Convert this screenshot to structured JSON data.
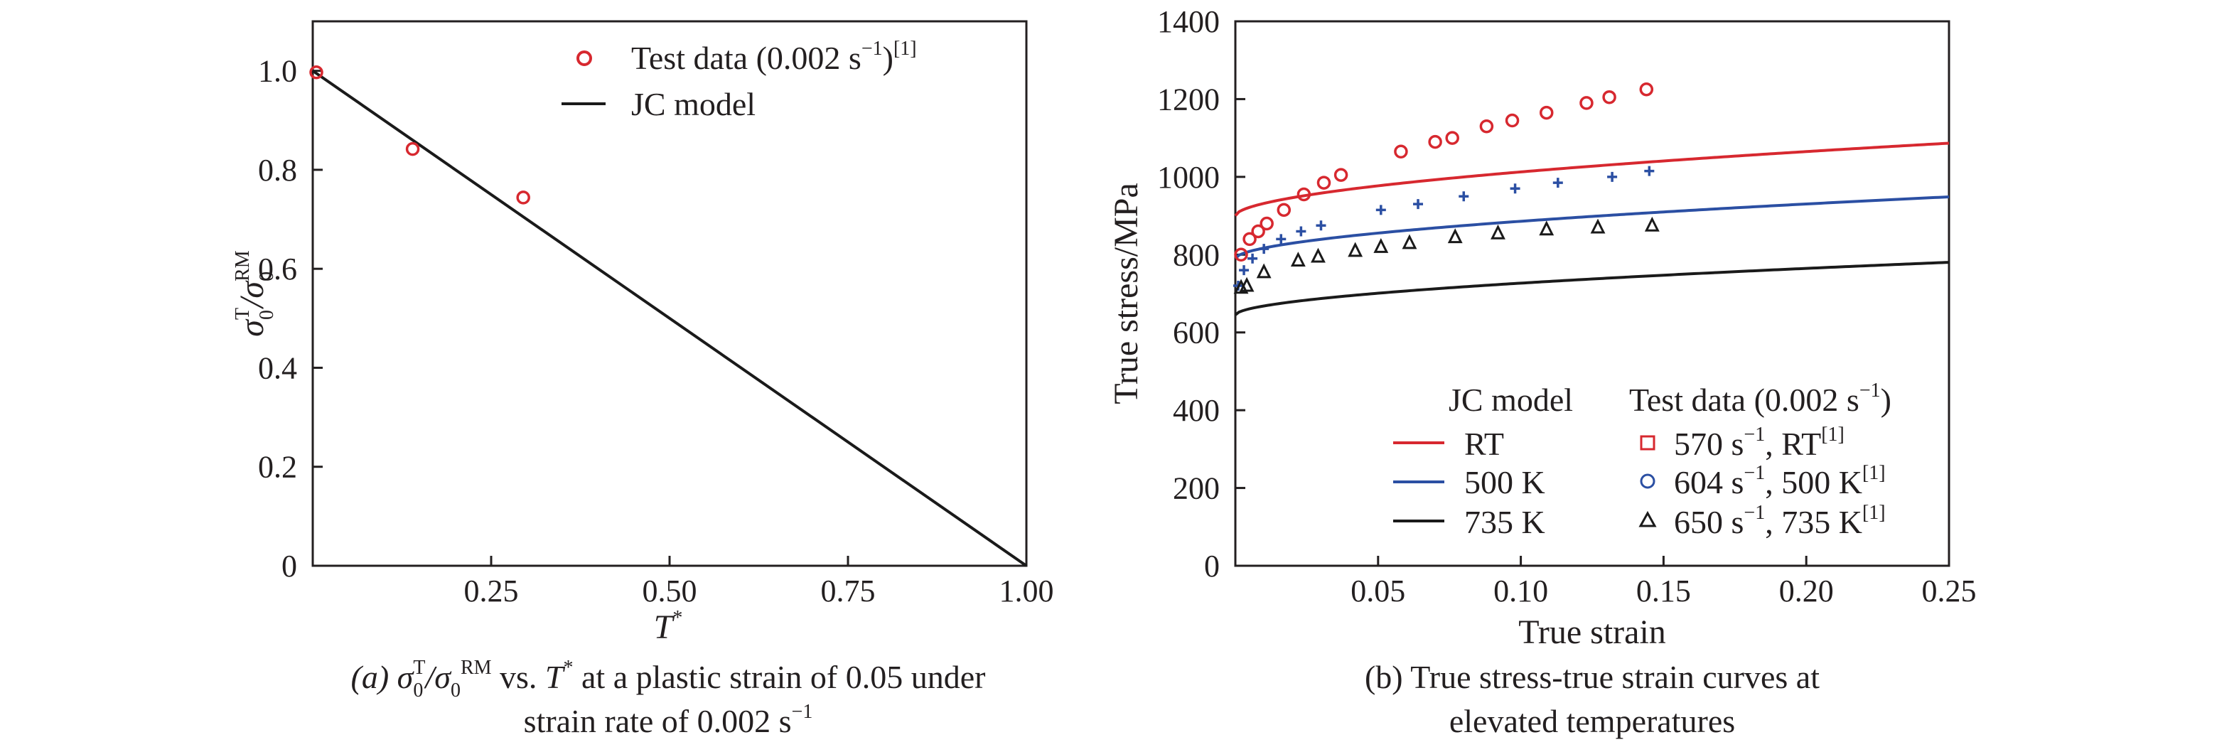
{
  "chart_data": [
    {
      "type": "line+scatter",
      "panel": "a",
      "ylabel": {
        "main": "σ",
        "sub": "0",
        "sup": "T",
        "slash": "/σ",
        "sub2": "0",
        "sup2": "RM"
      },
      "xlabel": {
        "main": "T",
        "sup": "*"
      },
      "xlim": [
        0,
        1.0
      ],
      "ylim": [
        0,
        1.1
      ],
      "xticks": [
        {
          "v": 0.25,
          "label": "0.25"
        },
        {
          "v": 0.5,
          "label": "0.50"
        },
        {
          "v": 0.75,
          "label": "0.75"
        },
        {
          "v": 1.0,
          "label": "1.00"
        }
      ],
      "yticks": [
        {
          "v": 0,
          "label": "0"
        },
        {
          "v": 0.2,
          "label": "0.2"
        },
        {
          "v": 0.4,
          "label": "0.4"
        },
        {
          "v": 0.6,
          "label": "0.6"
        },
        {
          "v": 0.8,
          "label": "0.8"
        },
        {
          "v": 1.0,
          "label": "1.0"
        }
      ],
      "series": [
        {
          "name": "Test data (0.002 s",
          "name_sup": "−1",
          "name_tail": ")",
          "name_ref": "[1]",
          "kind": "scatter",
          "marker": "circle",
          "color": "#d7282f",
          "x": [
            0.005,
            0.14,
            0.295
          ],
          "y": [
            0.997,
            0.842,
            0.744
          ]
        },
        {
          "name": "JC model",
          "kind": "line",
          "color": "#1a1a1a",
          "x": [
            0,
            1.0
          ],
          "y": [
            1.0,
            0.0
          ]
        }
      ],
      "caption": {
        "line1_a": "(a) σ",
        "line1_b": "0",
        "line1_c": "T",
        "line1_d": "/σ",
        "line1_e": "0",
        "line1_f": "RM",
        "line1_g": " vs. ",
        "line1_h": "T",
        "line1_i": "*",
        "line1_j": " at a plastic strain of 0.05 under",
        "line2": "strain rate of 0.002 s",
        "line2_sup": "−1"
      }
    },
    {
      "type": "line+scatter",
      "panel": "b",
      "ylabel": "True stress/MPa",
      "xlabel": "True strain",
      "xlim": [
        0,
        0.25
      ],
      "ylim": [
        0,
        1400
      ],
      "xticks": [
        {
          "v": 0.05,
          "label": "0.05"
        },
        {
          "v": 0.1,
          "label": "0.10"
        },
        {
          "v": 0.15,
          "label": "0.15"
        },
        {
          "v": 0.2,
          "label": "0.20"
        },
        {
          "v": 0.25,
          "label": "0.25"
        }
      ],
      "yticks": [
        {
          "v": 0,
          "label": "0"
        },
        {
          "v": 200,
          "label": "200"
        },
        {
          "v": 400,
          "label": "400"
        },
        {
          "v": 600,
          "label": "600"
        },
        {
          "v": 800,
          "label": "800"
        },
        {
          "v": 1000,
          "label": "1000"
        },
        {
          "v": 1200,
          "label": "1200"
        },
        {
          "v": 1400,
          "label": "1400"
        }
      ],
      "legend_heads": {
        "model": "JC model",
        "test": "Test data (0.002 s",
        "test_sup": "−1",
        "test_tail": ")"
      },
      "model_series": [
        {
          "name": "RT",
          "color": "#d7282f",
          "A": 900,
          "B": 400,
          "n": 0.55
        },
        {
          "name": "500 K",
          "color": "#2b4fa3",
          "A": 790,
          "B": 340,
          "n": 0.55
        },
        {
          "name": "735 K",
          "color": "#1a1a1a",
          "A": 645,
          "B": 290,
          "n": 0.55
        }
      ],
      "test_series": [
        {
          "name": "570 s",
          "sup": "−1",
          "tail": ", RT",
          "ref": "[1]",
          "marker": "circle",
          "legend_marker": "square",
          "color": "#d7282f",
          "x": [
            0.002,
            0.005,
            0.008,
            0.011,
            0.017,
            0.024,
            0.031,
            0.037,
            0.058,
            0.07,
            0.076,
            0.088,
            0.097,
            0.109,
            0.123,
            0.131,
            0.144
          ],
          "y": [
            800,
            840,
            860,
            880,
            915,
            955,
            985,
            1005,
            1065,
            1090,
            1100,
            1130,
            1145,
            1165,
            1190,
            1205,
            1225
          ]
        },
        {
          "name": "604 s",
          "sup": "−1",
          "tail": ", 500 K",
          "ref": "[1]",
          "marker": "plus",
          "legend_marker": "circle",
          "color": "#2b4fa3",
          "x": [
            0.001,
            0.003,
            0.006,
            0.01,
            0.016,
            0.023,
            0.03,
            0.051,
            0.064,
            0.08,
            0.098,
            0.113,
            0.132,
            0.145
          ],
          "y": [
            720,
            760,
            790,
            815,
            840,
            860,
            875,
            915,
            930,
            950,
            970,
            985,
            1000,
            1015
          ]
        },
        {
          "name": "650 s",
          "sup": "−1",
          "tail": ", 735 K",
          "ref": "[1]",
          "marker": "triangle",
          "legend_marker": "triangle",
          "color": "#1a1a1a",
          "x": [
            0.002,
            0.004,
            0.01,
            0.022,
            0.029,
            0.042,
            0.051,
            0.061,
            0.077,
            0.092,
            0.109,
            0.127,
            0.146
          ],
          "y": [
            715,
            720,
            755,
            785,
            795,
            810,
            820,
            830,
            845,
            855,
            865,
            870,
            875
          ]
        }
      ],
      "caption": {
        "line1": "(b) True stress-true strain curves at",
        "line2": "elevated temperatures"
      }
    }
  ]
}
